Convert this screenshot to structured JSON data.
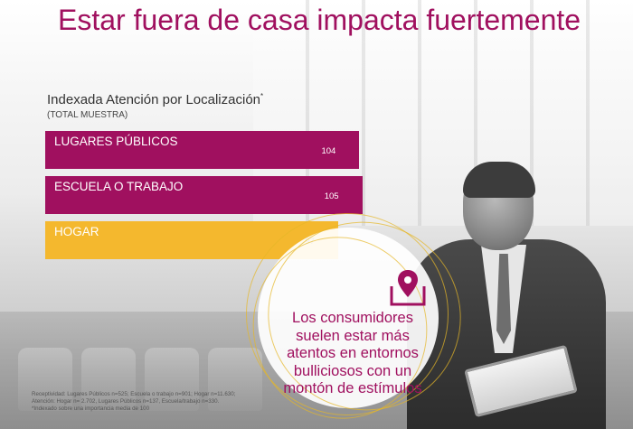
{
  "title": "Estar fuera de casa impacta fuertemente",
  "chart_data": {
    "type": "bar",
    "orientation": "horizontal",
    "title": "Indexada Atención por Localización",
    "title_mark": "*",
    "subtitle": "(TOTAL MUESTRA)",
    "categories": [
      "LUGARES PÚBLICOS",
      "ESCUELA O TRABAJO",
      "HOGAR"
    ],
    "values": [
      104,
      105,
      97
    ],
    "colors": [
      "#a0105f",
      "#a0105f",
      "#f4b82e"
    ],
    "xlim": [
      0,
      115
    ],
    "xlabel": "",
    "ylabel": "",
    "grid": false,
    "legend": "none"
  },
  "callout": {
    "lines": [
      "Los consumidores",
      "suelen estar más",
      "atentos en entornos",
      "bulliciosos con un",
      "montón de estímulos"
    ],
    "icon": "tablet-location-pin-icon",
    "accent_color": "#a0105f",
    "ring_color": "#e6b628"
  },
  "footnote": {
    "line1": "Receptividad: Lugares Públicos n=525; Escuela o trabajo n=901; Hogar n=11.630;",
    "line2": "Atención: Hogar n= 2.702, Lugares Públicos n=137, Escuela/trabajo n=330.",
    "line3": "*Indexado sobre una importancia media de 100"
  }
}
